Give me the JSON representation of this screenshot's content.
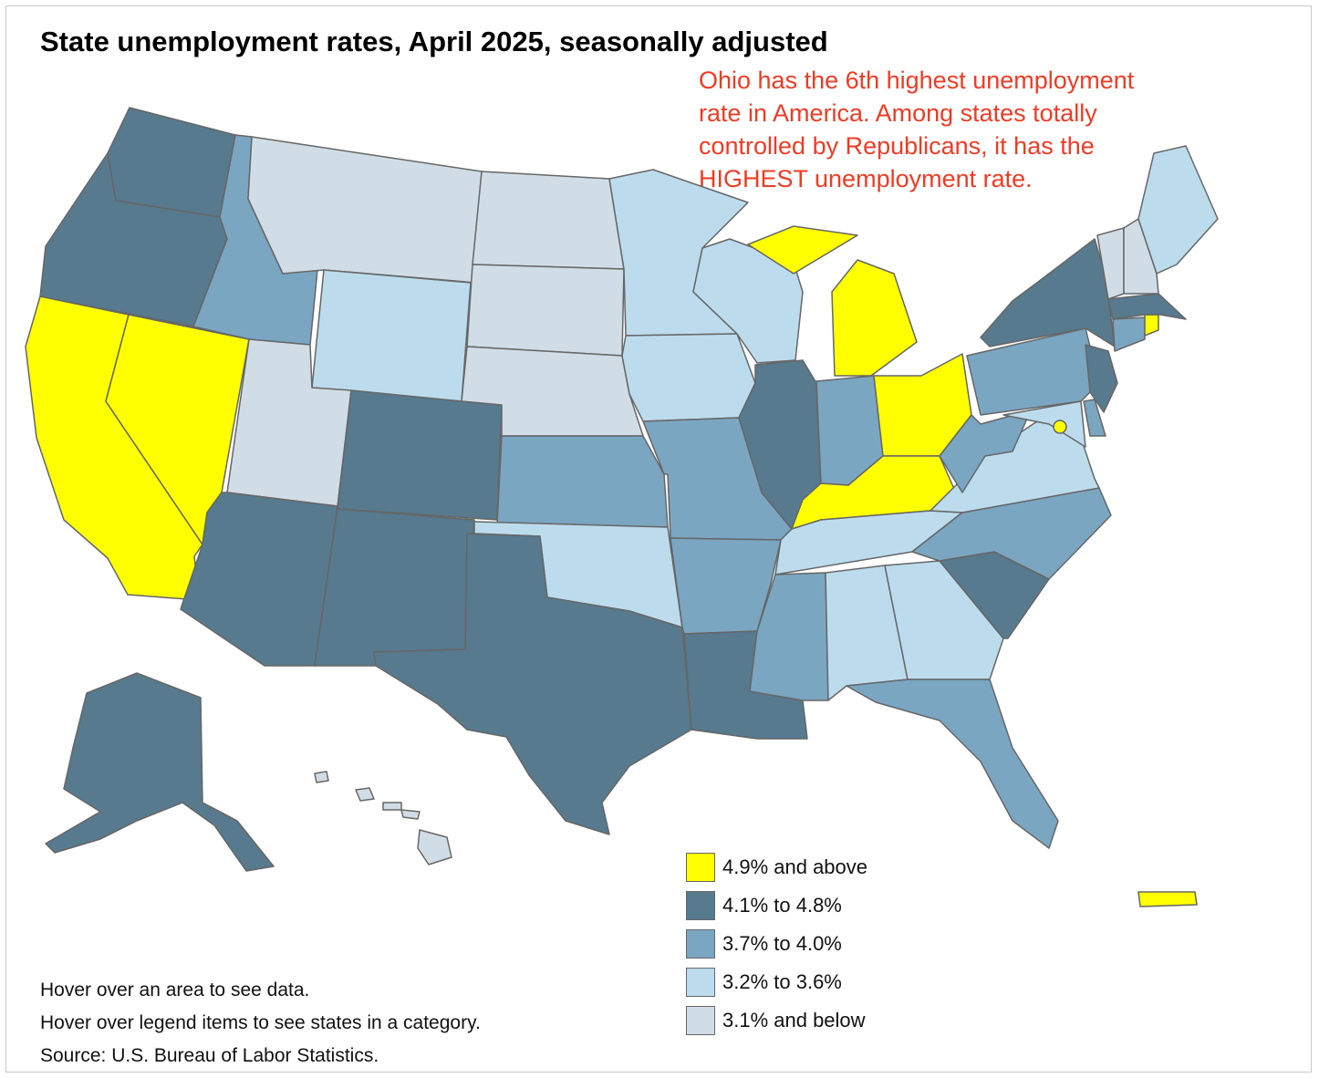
{
  "title": "State unemployment rates, April 2025, seasonally adjusted",
  "annotation": {
    "lines": [
      "Ohio has the 6th highest unemployment",
      "rate in America. Among states totally",
      "controlled by Republicans, it has the",
      "HIGHEST unemployment rate."
    ],
    "color": "#ef3b24"
  },
  "legend": [
    {
      "label": "4.9% and above",
      "color": "#ffff00"
    },
    {
      "label": "4.1% to 4.8%",
      "color": "#577a8e"
    },
    {
      "label": "3.7% to 4.0%",
      "color": "#7aa6c2"
    },
    {
      "label": "3.2% to 3.6%",
      "color": "#bcdcee"
    },
    {
      "label": "3.1% and below",
      "color": "#d1dde6"
    }
  ],
  "notes": [
    "Hover over an area to see data.",
    "Hover over legend items to see states in a category.",
    "Source: U.S. Bureau of Labor Statistics."
  ],
  "state_categories": {
    "WA": 1,
    "OR": 1,
    "CA": 0,
    "NV": 0,
    "ID": 2,
    "MT": 4,
    "WY": 3,
    "UT": 4,
    "AZ": 1,
    "CO": 1,
    "NM": 1,
    "ND": 4,
    "SD": 4,
    "NE": 4,
    "KS": 2,
    "OK": 3,
    "TX": 1,
    "MN": 3,
    "IA": 3,
    "MO": 2,
    "AR": 2,
    "LA": 1,
    "WI": 3,
    "IL": 1,
    "MI": 0,
    "IN": 2,
    "OH": 0,
    "KY": 0,
    "TN": 3,
    "MS": 2,
    "AL": 3,
    "GA": 3,
    "FL": 2,
    "SC": 1,
    "NC": 2,
    "VA": 3,
    "WV": 2,
    "PA": 2,
    "NY": 1,
    "NJ": 1,
    "DE": 2,
    "MD": 3,
    "DC": 0,
    "CT": 2,
    "RI": 0,
    "MA": 1,
    "VT": 4,
    "NH": 4,
    "ME": 3,
    "AK": 1,
    "HI": 4,
    "PR": 0
  }
}
